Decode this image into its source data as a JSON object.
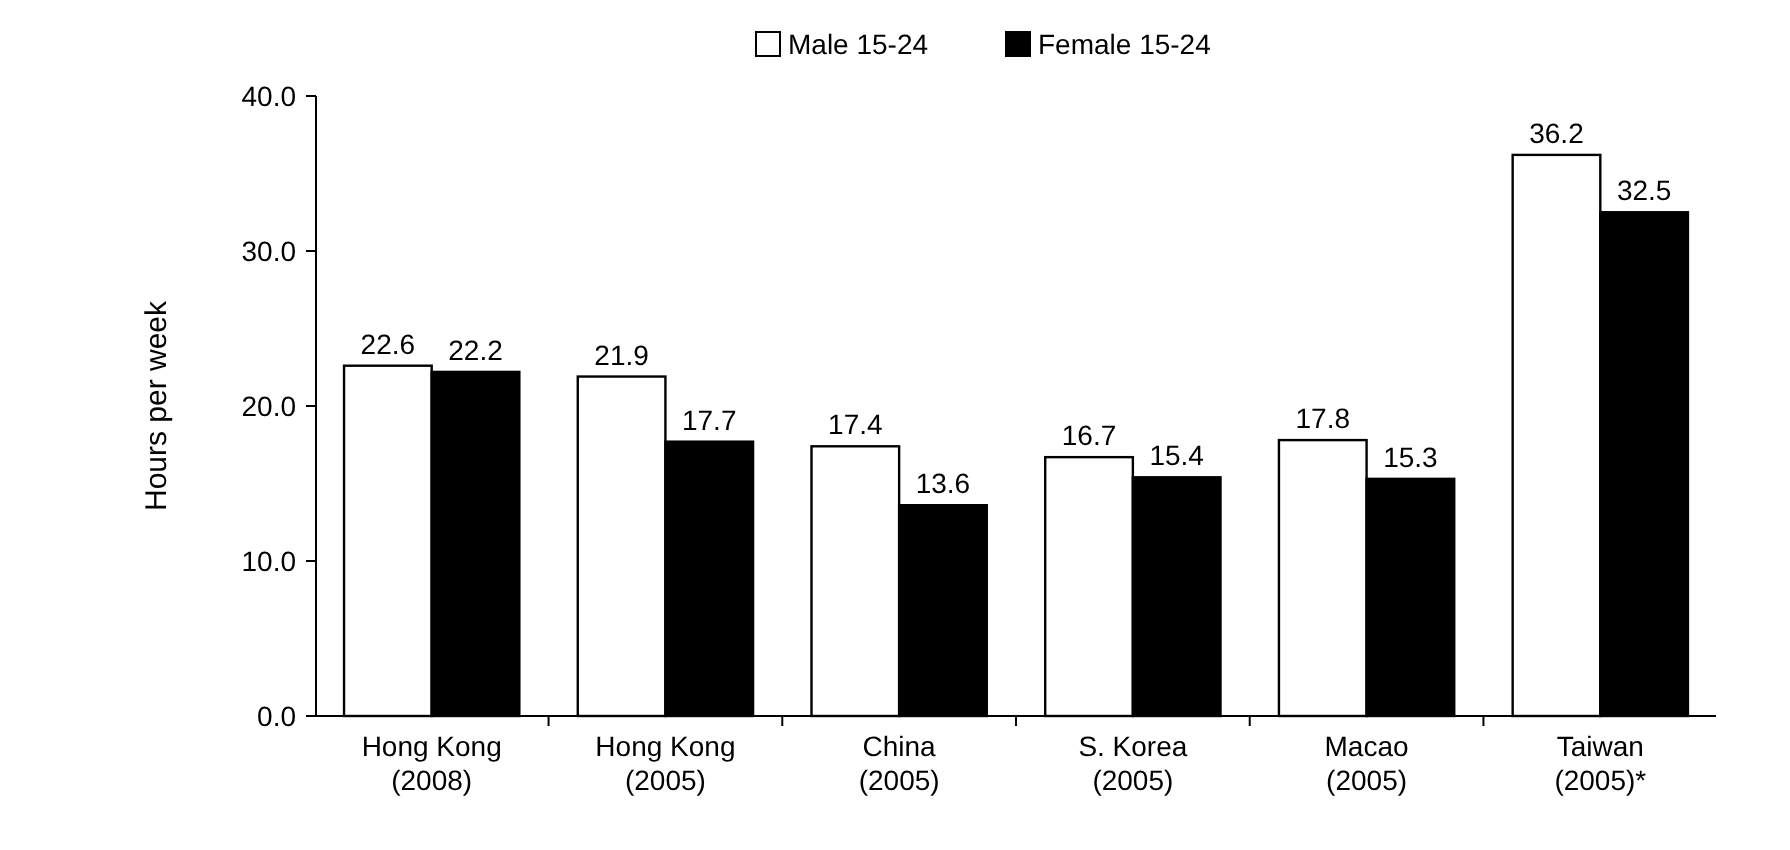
{
  "chart_data": {
    "type": "bar",
    "ylabel": "Hours per week",
    "categories": [
      "Hong Kong\n(2008)",
      "Hong Kong\n(2005)",
      "China\n(2005)",
      "S. Korea\n(2005)",
      "Macao\n(2005)",
      "Taiwan\n(2005)*"
    ],
    "series": [
      {
        "name": "Male 15-24",
        "color": "#ffffff",
        "values": [
          22.6,
          21.9,
          17.4,
          16.7,
          17.8,
          36.2
        ]
      },
      {
        "name": "Female 15-24",
        "color": "#000000",
        "values": [
          22.2,
          17.7,
          13.6,
          15.4,
          15.3,
          32.5
        ]
      }
    ],
    "ylim": [
      0,
      40
    ],
    "yticks": [
      {
        "value": 0,
        "label": "0.0"
      },
      {
        "value": 10,
        "label": "10.0"
      },
      {
        "value": 20,
        "label": "20.0"
      },
      {
        "value": 30,
        "label": "30.0"
      },
      {
        "value": 40,
        "label": "40.0"
      }
    ],
    "data_labels": true,
    "legend": "top",
    "grid": false
  }
}
